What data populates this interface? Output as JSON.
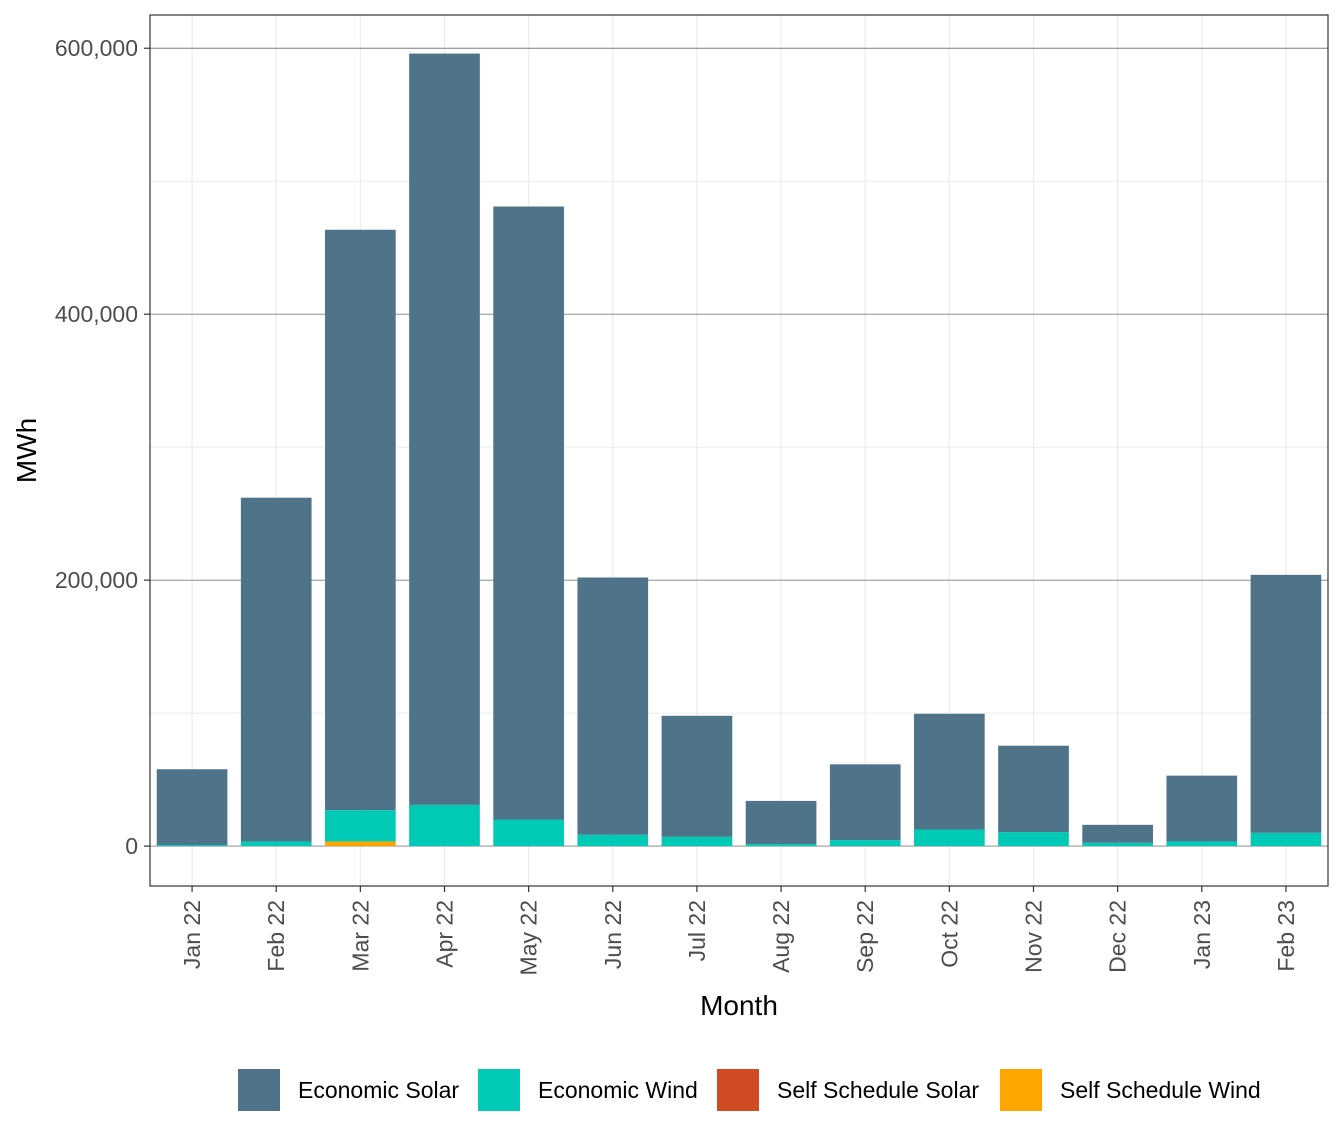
{
  "chart_data": {
    "type": "bar",
    "stacked": true,
    "xlabel": "Month",
    "ylabel": "MWh",
    "ylim": [
      -30000,
      625000
    ],
    "yticks": [
      0,
      200000,
      400000,
      600000
    ],
    "ytick_labels": [
      "0",
      "200,000",
      "400,000",
      "600,000"
    ],
    "grid": true,
    "legend_position": "bottom",
    "categories": [
      "Jan 22",
      "Feb 22",
      "Mar 22",
      "Apr 22",
      "May 22",
      "Jun 22",
      "Jul 22",
      "Aug 22",
      "Sep 22",
      "Oct 22",
      "Nov 22",
      "Dec 22",
      "Jan 23",
      "Feb 23"
    ],
    "series": [
      {
        "name": "Self Schedule Wind",
        "color": "#FFA500",
        "values": [
          0,
          0,
          3500,
          0,
          0,
          0,
          0,
          0,
          0,
          0,
          0,
          0,
          0,
          0
        ]
      },
      {
        "name": "Self Schedule Solar",
        "color": "#D04A22",
        "values": [
          0,
          0,
          0,
          0,
          0,
          0,
          0,
          0,
          0,
          0,
          0,
          0,
          0,
          0
        ]
      },
      {
        "name": "Economic Wind",
        "color": "#00C9B5",
        "values": [
          800,
          3500,
          23500,
          31000,
          20000,
          8500,
          7000,
          1500,
          4500,
          12500,
          10500,
          2500,
          3500,
          10000
        ]
      },
      {
        "name": "Economic Solar",
        "color": "#4F7489",
        "values": [
          57000,
          258500,
          436500,
          565000,
          461000,
          193500,
          91000,
          32500,
          57000,
          87000,
          65000,
          13500,
          49500,
          194000
        ]
      }
    ],
    "legend": [
      "Economic Solar",
      "Economic Wind",
      "Self Schedule Solar",
      "Self Schedule Wind"
    ]
  }
}
